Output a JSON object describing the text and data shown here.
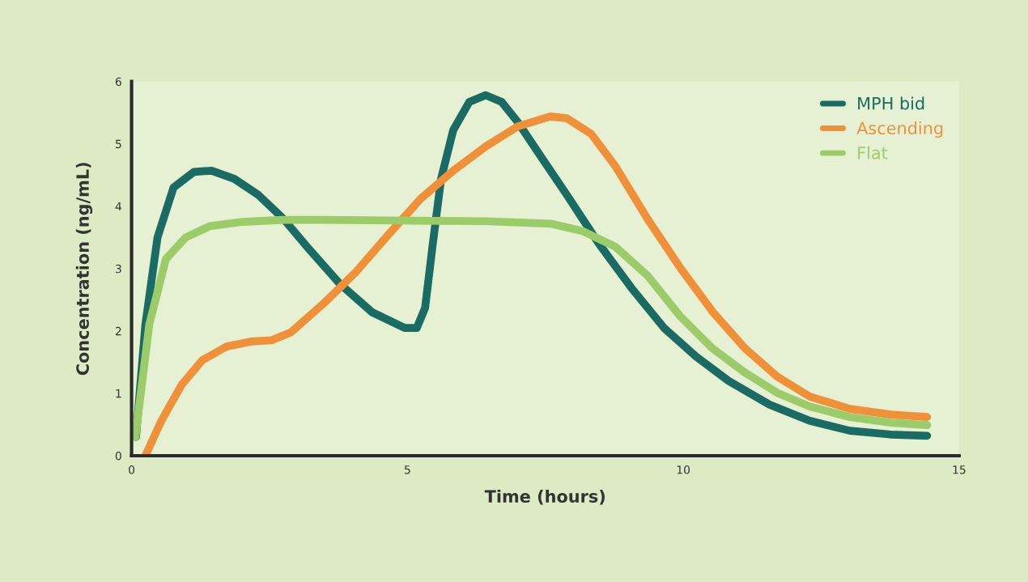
{
  "chart_data": {
    "type": "line",
    "xlabel": "Time (hours)",
    "ylabel": "Concentration (ng/mL)",
    "xlim": [
      0,
      15
    ],
    "ylim": [
      0,
      6
    ],
    "xticks": [
      0,
      5,
      10,
      15
    ],
    "yticks": [
      0,
      1,
      2,
      3,
      4,
      5,
      6
    ],
    "grid": false,
    "legend": "top right",
    "marker": "none",
    "line_style": "solid",
    "series": [
      {
        "name": "MPH bid",
        "color": "#1a6b63",
        "x": [
          0.08,
          0.25,
          0.47,
          0.76,
          1.13,
          1.45,
          1.86,
          2.3,
          2.75,
          3.19,
          3.77,
          4.36,
          4.95,
          5.17,
          5.32,
          5.46,
          5.61,
          5.83,
          6.12,
          6.42,
          6.71,
          7.0,
          7.44,
          7.89,
          8.47,
          9.06,
          9.65,
          10.23,
          10.82,
          11.56,
          12.29,
          13.02,
          13.76,
          14.42
        ],
        "values": [
          0.3,
          2.1,
          3.5,
          4.3,
          4.55,
          4.57,
          4.44,
          4.18,
          3.8,
          3.34,
          2.76,
          2.3,
          2.05,
          2.05,
          2.37,
          3.4,
          4.44,
          5.22,
          5.67,
          5.78,
          5.67,
          5.35,
          4.77,
          4.18,
          3.4,
          2.69,
          2.05,
          1.59,
          1.2,
          0.82,
          0.56,
          0.4,
          0.34,
          0.32
        ]
      },
      {
        "name": "Ascending",
        "color": "#f0913a",
        "x": [
          0.25,
          0.54,
          0.91,
          1.28,
          1.72,
          2.16,
          2.53,
          2.89,
          3.48,
          4.07,
          4.65,
          5.24,
          5.83,
          6.42,
          7.0,
          7.59,
          7.89,
          8.33,
          8.77,
          9.35,
          9.94,
          10.53,
          11.12,
          11.7,
          12.29,
          13.02,
          13.76,
          14.42
        ],
        "values": [
          0,
          0.56,
          1.14,
          1.53,
          1.75,
          1.83,
          1.85,
          1.98,
          2.44,
          2.95,
          3.54,
          4.12,
          4.57,
          4.96,
          5.28,
          5.44,
          5.41,
          5.16,
          4.64,
          3.8,
          3.02,
          2.31,
          1.72,
          1.27,
          0.95,
          0.75,
          0.66,
          0.62
        ]
      },
      {
        "name": "Flat",
        "color": "#9ccc6a",
        "x": [
          0.07,
          0.32,
          0.62,
          0.98,
          1.42,
          2.01,
          2.75,
          3.48,
          4.95,
          6.42,
          7.59,
          8.18,
          8.77,
          9.35,
          9.94,
          10.53,
          11.12,
          11.7,
          12.29,
          13.02,
          13.76,
          14.42
        ],
        "values": [
          0.3,
          2.1,
          3.15,
          3.5,
          3.68,
          3.75,
          3.78,
          3.78,
          3.77,
          3.76,
          3.72,
          3.6,
          3.35,
          2.89,
          2.24,
          1.72,
          1.33,
          1.01,
          0.79,
          0.62,
          0.53,
          0.49
        ]
      }
    ]
  }
}
